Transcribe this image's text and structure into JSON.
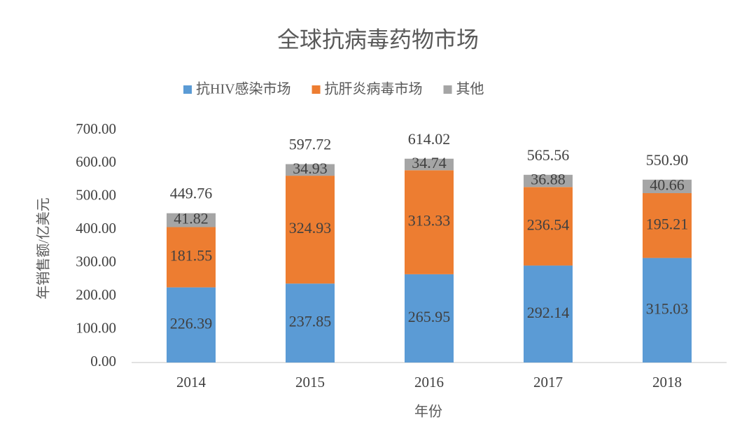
{
  "chart_data": {
    "type": "stacked-bar",
    "title": "全球抗病毒药物市场",
    "categories": [
      "2014",
      "2015",
      "2016",
      "2017",
      "2018"
    ],
    "series": [
      {
        "name": "抗HIV感染市场",
        "color": "#5b9bd5",
        "values": [
          226.39,
          237.85,
          265.95,
          292.14,
          315.03
        ]
      },
      {
        "name": "抗肝炎病毒市场",
        "color": "#ed7d31",
        "values": [
          181.55,
          324.93,
          313.33,
          236.54,
          195.21
        ]
      },
      {
        "name": "其他",
        "color": "#a5a5a5",
        "values": [
          41.82,
          34.93,
          34.74,
          36.88,
          40.66
        ]
      }
    ],
    "totals": {
      "values": [
        449.76,
        597.72,
        614.02,
        565.56,
        550.9
      ],
      "value_labels": [
        "449.76",
        "597.72",
        "614.02",
        "565.56",
        "550.90"
      ]
    },
    "y_label": "年销售额/亿美元",
    "x_label": "年份",
    "ylim": [
      0,
      700
    ],
    "yticks": [
      {
        "value": 0,
        "label": "0.00"
      },
      {
        "value": 100,
        "label": "100.00"
      },
      {
        "value": 200,
        "label": "200.00"
      },
      {
        "value": 300,
        "label": "300.00"
      },
      {
        "value": 400,
        "label": "400.00"
      },
      {
        "value": 500,
        "label": "500.00"
      },
      {
        "value": 600,
        "label": "600.00"
      },
      {
        "value": 700,
        "label": "700.00"
      }
    ],
    "grid": false,
    "legend": "top"
  }
}
